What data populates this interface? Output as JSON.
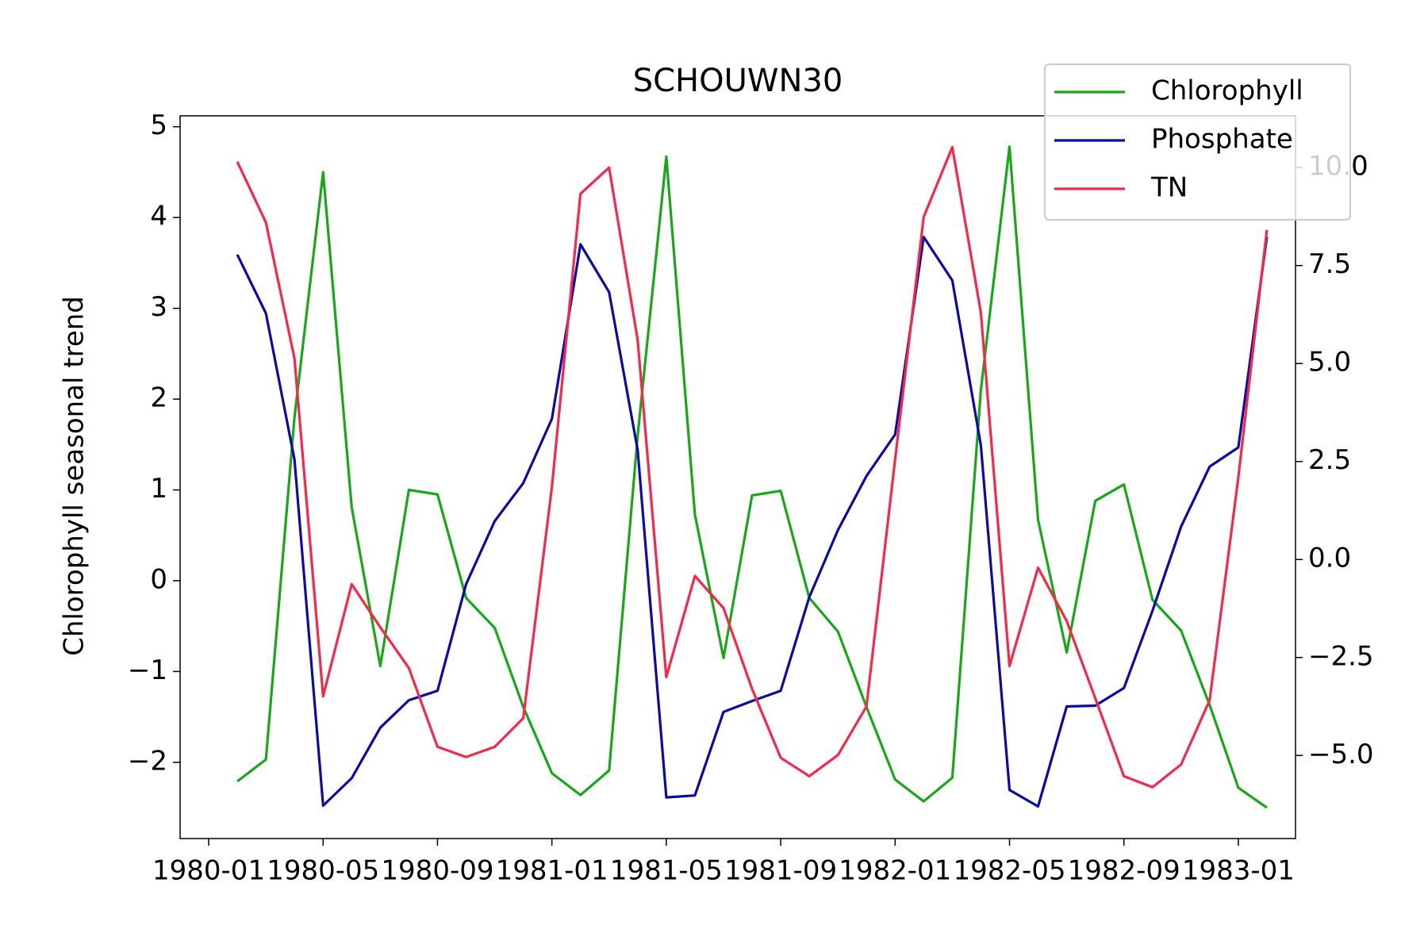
{
  "chart_data": {
    "type": "line",
    "title": "SCHOUWN30",
    "ylabel": "Chlorophyll seasonal trend",
    "x": [
      "1980-02",
      "1980-03",
      "1980-04",
      "1980-05",
      "1980-06",
      "1980-07",
      "1980-08",
      "1980-09",
      "1980-10",
      "1980-11",
      "1980-12",
      "1981-01",
      "1981-02",
      "1981-03",
      "1981-04",
      "1981-05",
      "1981-06",
      "1981-07",
      "1981-08",
      "1981-09",
      "1981-10",
      "1981-11",
      "1981-12",
      "1982-01",
      "1982-02",
      "1982-03",
      "1982-04",
      "1982-05",
      "1982-06",
      "1982-07",
      "1982-08",
      "1982-09",
      "1982-10",
      "1982-11",
      "1982-12",
      "1983-01",
      "1983-02"
    ],
    "series": [
      {
        "name": "Chlorophyll",
        "color": "#17a817",
        "values": [
          -2.21,
          -1.97,
          1.8,
          4.5,
          0.81,
          -0.94,
          1.0,
          0.95,
          -0.19,
          -0.52,
          -1.39,
          -2.12,
          -2.36,
          -2.09,
          1.6,
          4.67,
          0.73,
          -0.85,
          0.94,
          0.99,
          -0.19,
          -0.56,
          -1.39,
          -2.19,
          -2.43,
          -2.17,
          2.1,
          4.78,
          0.67,
          -0.79,
          0.88,
          1.06,
          -0.21,
          -0.55,
          -1.37,
          -2.28,
          -2.5
        ]
      },
      {
        "name": "Phosphate",
        "color": "#0a0aa8",
        "axis": "y2",
        "values": [
          7.78,
          6.28,
          2.55,
          -6.28,
          -5.58,
          -4.29,
          -3.59,
          -3.35,
          -0.63,
          0.98,
          1.95,
          3.59,
          8.04,
          6.82,
          2.79,
          -6.07,
          -6.02,
          -3.89,
          -3.61,
          -3.35,
          -0.96,
          0.75,
          2.13,
          3.19,
          8.23,
          7.12,
          2.91,
          -5.88,
          -6.3,
          -3.75,
          -3.73,
          -3.28,
          -1.31,
          0.84,
          2.37,
          2.86,
          8.23
        ]
      },
      {
        "name": "TN",
        "color": "#f5284a",
        "axis": "y2",
        "values": [
          10.15,
          8.6,
          5.13,
          -3.49,
          -0.63,
          -1.73,
          -2.77,
          -4.78,
          -5.04,
          -4.78,
          -4.05,
          1.85,
          9.33,
          10.0,
          5.6,
          -3.0,
          -0.42,
          -1.24,
          -3.3,
          -5.06,
          -5.53,
          -4.99,
          -3.75,
          2.55,
          8.74,
          10.52,
          6.3,
          -2.72,
          -0.21,
          -1.57,
          -3.54,
          -5.53,
          -5.81,
          -5.23,
          -3.59,
          2.09,
          8.41
        ]
      }
    ],
    "xlim": [
      "1979-12",
      "1983-03"
    ],
    "xticks": [
      "1980-01",
      "1980-05",
      "1980-09",
      "1981-01",
      "1981-05",
      "1981-09",
      "1982-01",
      "1982-05",
      "1982-09",
      "1983-01"
    ],
    "ylim": [
      -2.84,
      5.12
    ],
    "yticks": [
      {
        "value": -2,
        "label": "−2"
      },
      {
        "value": -1,
        "label": "−1"
      },
      0,
      1,
      2,
      3,
      4,
      5
    ],
    "y2lim": [
      -7.12,
      11.32
    ],
    "y2ticks": [
      {
        "value": -5,
        "label": "−5.0"
      },
      {
        "value": -2.5,
        "label": "−2.5"
      },
      {
        "value": 0,
        "label": "0.0"
      },
      {
        "value": 2.5,
        "label": "2.5"
      },
      {
        "value": 5,
        "label": "5.0"
      },
      {
        "value": 7.5,
        "label": "7.5"
      },
      {
        "value": 10,
        "label": "10.0"
      }
    ],
    "legend": "upper right"
  }
}
